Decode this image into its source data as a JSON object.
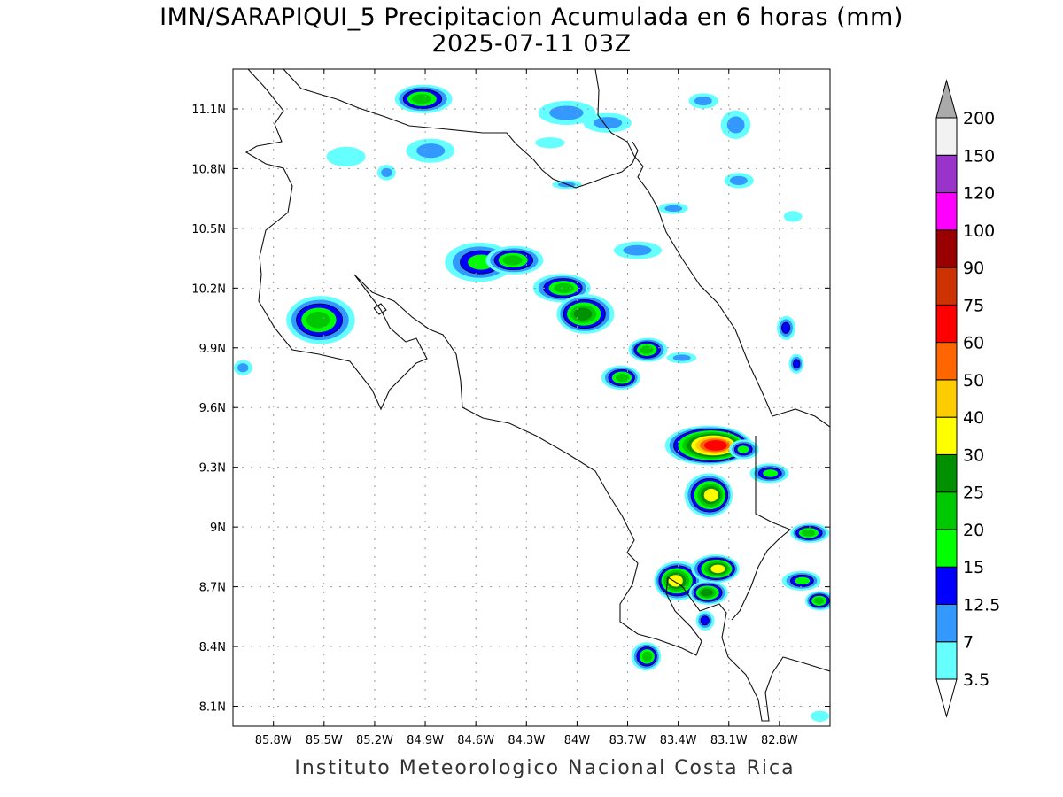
{
  "title": "IMN/SARAPIQUI_5 Precipitacion Acumulada en 6 horas (mm)",
  "subtitle": "2025-07-11 03Z",
  "footer": "Instituto Meteorologico Nacional Costa Rica",
  "map": {
    "lon_range": [
      -86.04,
      -82.5
    ],
    "lat_range": [
      8.0,
      11.3
    ],
    "grid": true,
    "lon_ticks": [
      {
        "v": -85.8,
        "label": "85.8W"
      },
      {
        "v": -85.5,
        "label": "85.5W"
      },
      {
        "v": -85.2,
        "label": "85.2W"
      },
      {
        "v": -84.9,
        "label": "84.9W"
      },
      {
        "v": -84.6,
        "label": "84.6W"
      },
      {
        "v": -84.3,
        "label": "84.3W"
      },
      {
        "v": -84.0,
        "label": "84W"
      },
      {
        "v": -83.7,
        "label": "83.7W"
      },
      {
        "v": -83.4,
        "label": "83.4W"
      },
      {
        "v": -83.1,
        "label": "83.1W"
      },
      {
        "v": -82.8,
        "label": "82.8W"
      }
    ],
    "lat_ticks": [
      {
        "v": 11.1,
        "label": "11.1N"
      },
      {
        "v": 10.8,
        "label": "10.8N"
      },
      {
        "v": 10.5,
        "label": "10.5N"
      },
      {
        "v": 10.2,
        "label": "10.2N"
      },
      {
        "v": 9.9,
        "label": "9.9N"
      },
      {
        "v": 9.6,
        "label": "9.6N"
      },
      {
        "v": 9.3,
        "label": "9.3N"
      },
      {
        "v": 9.0,
        "label": "9N"
      },
      {
        "v": 8.7,
        "label": "8.7N"
      },
      {
        "v": 8.4,
        "label": "8.4N"
      },
      {
        "v": 8.1,
        "label": "8.1N"
      }
    ]
  },
  "colorbar": {
    "levels": [
      "3.5",
      "7",
      "12.5",
      "15",
      "20",
      "25",
      "30",
      "40",
      "50",
      "60",
      "75",
      "90",
      "100",
      "120",
      "150",
      "200"
    ],
    "colors": [
      "#66ffff",
      "#3399ff",
      "#0000ff",
      "#00ff00",
      "#00c800",
      "#009000",
      "#ffff00",
      "#ffcc00",
      "#ff6600",
      "#ff0000",
      "#cc3300",
      "#990000",
      "#ff00ff",
      "#9933cc",
      "#f2f2f2"
    ],
    "over_color": "#aaaaaa",
    "under_color": "#ffffff"
  },
  "precip_cells_mm": [
    {
      "lon": -84.91,
      "lat": 11.15,
      "peak": 20,
      "dlon": 0.31,
      "dlat": 0.13
    },
    {
      "lon": -84.87,
      "lat": 10.89,
      "peak": 7,
      "dlon": 0.26,
      "dlat": 0.11
    },
    {
      "lon": -85.52,
      "lat": 10.04,
      "peak": 20,
      "dlon": 0.37,
      "dlat": 0.22
    },
    {
      "lon": -84.58,
      "lat": 10.33,
      "peak": 15,
      "dlon": 0.37,
      "dlat": 0.18
    },
    {
      "lon": -84.37,
      "lat": 10.34,
      "peak": 20,
      "dlon": 0.31,
      "dlat": 0.13
    },
    {
      "lon": -84.09,
      "lat": 10.2,
      "peak": 20,
      "dlon": 0.31,
      "dlat": 0.13
    },
    {
      "lon": -83.95,
      "lat": 10.07,
      "peak": 25,
      "dlon": 0.31,
      "dlat": 0.18
    },
    {
      "lon": -83.74,
      "lat": 9.75,
      "peak": 20,
      "dlon": 0.21,
      "dlat": 0.11
    },
    {
      "lon": -83.58,
      "lat": 9.89,
      "peak": 20,
      "dlon": 0.21,
      "dlat": 0.11
    },
    {
      "lon": -83.22,
      "lat": 9.41,
      "peak": 60,
      "dlon": 0.47,
      "dlat": 0.18
    },
    {
      "lon": -83.01,
      "lat": 9.39,
      "peak": 15,
      "dlon": 0.16,
      "dlat": 0.09
    },
    {
      "lon": -83.22,
      "lat": 9.16,
      "peak": 30,
      "dlon": 0.26,
      "dlat": 0.2
    },
    {
      "lon": -83.4,
      "lat": 8.73,
      "peak": 30,
      "dlon": 0.26,
      "dlat": 0.18
    },
    {
      "lon": -83.18,
      "lat": 8.79,
      "peak": 30,
      "dlon": 0.26,
      "dlat": 0.13
    },
    {
      "lon": -83.22,
      "lat": 8.67,
      "peak": 25,
      "dlon": 0.21,
      "dlat": 0.11
    },
    {
      "lon": -83.59,
      "lat": 8.35,
      "peak": 20,
      "dlon": 0.16,
      "dlat": 0.13
    },
    {
      "lon": -82.62,
      "lat": 8.97,
      "peak": 20,
      "dlon": 0.21,
      "dlat": 0.09
    },
    {
      "lon": -82.67,
      "lat": 8.73,
      "peak": 15,
      "dlon": 0.21,
      "dlat": 0.09
    },
    {
      "lon": -82.56,
      "lat": 8.63,
      "peak": 20,
      "dlon": 0.16,
      "dlat": 0.09
    },
    {
      "lon": -82.86,
      "lat": 9.27,
      "peak": 15,
      "dlon": 0.21,
      "dlat": 0.09
    },
    {
      "lon": -84.06,
      "lat": 11.08,
      "peak": 7,
      "dlon": 0.31,
      "dlat": 0.11
    },
    {
      "lon": -83.82,
      "lat": 11.03,
      "peak": 7,
      "dlon": 0.26,
      "dlat": 0.09
    },
    {
      "lon": -83.25,
      "lat": 11.14,
      "peak": 7,
      "dlon": 0.16,
      "dlat": 0.07
    },
    {
      "lon": -83.06,
      "lat": 11.02,
      "peak": 7,
      "dlon": 0.16,
      "dlat": 0.13
    },
    {
      "lon": -83.04,
      "lat": 10.74,
      "peak": 7,
      "dlon": 0.16,
      "dlat": 0.07
    },
    {
      "lon": -83.43,
      "lat": 10.6,
      "peak": 7,
      "dlon": 0.16,
      "dlat": 0.05
    },
    {
      "lon": -83.64,
      "lat": 10.39,
      "peak": 7,
      "dlon": 0.26,
      "dlat": 0.08
    },
    {
      "lon": -83.38,
      "lat": 9.85,
      "peak": 7,
      "dlon": 0.16,
      "dlat": 0.05
    },
    {
      "lon": -85.37,
      "lat": 10.86,
      "peak": 3.5,
      "dlon": 0.21,
      "dlat": 0.09
    },
    {
      "lon": -84.16,
      "lat": 10.93,
      "peak": 3.5,
      "dlon": 0.16,
      "dlat": 0.05
    },
    {
      "lon": -82.76,
      "lat": 10.0,
      "peak": 12.5,
      "dlon": 0.1,
      "dlat": 0.11
    },
    {
      "lon": -82.7,
      "lat": 9.82,
      "peak": 12.5,
      "dlon": 0.08,
      "dlat": 0.09
    },
    {
      "lon": -85.98,
      "lat": 9.8,
      "peak": 7,
      "dlon": 0.1,
      "dlat": 0.07
    },
    {
      "lon": -85.13,
      "lat": 10.78,
      "peak": 7,
      "dlon": 0.1,
      "dlat": 0.07
    },
    {
      "lon": -84.06,
      "lat": 10.72,
      "peak": 7,
      "dlon": 0.16,
      "dlat": 0.04
    },
    {
      "lon": -82.72,
      "lat": 10.56,
      "peak": 3.5,
      "dlon": 0.1,
      "dlat": 0.05
    },
    {
      "lon": -83.24,
      "lat": 8.53,
      "peak": 12.5,
      "dlon": 0.1,
      "dlat": 0.09
    },
    {
      "lon": -82.56,
      "lat": 8.05,
      "peak": 3.5,
      "dlon": 0.1,
      "dlat": 0.05
    }
  ]
}
